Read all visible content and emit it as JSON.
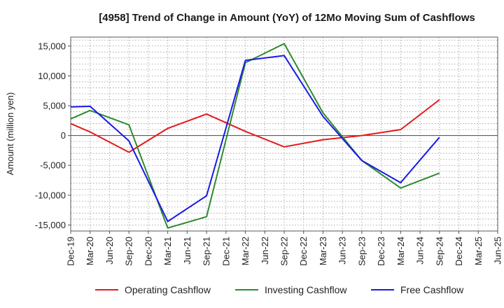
{
  "chart_data": {
    "type": "line",
    "title": "[4958]  Trend of Change in Amount (YoY) of 12Mo Moving Sum of Cashflows",
    "xlabel": "",
    "ylabel": "Amount (million yen)",
    "ylim": [
      -16000,
      16500
    ],
    "yticks": [
      -15000,
      -10000,
      -5000,
      0,
      5000,
      10000,
      15000
    ],
    "ytick_labels": [
      "-15,000",
      "-10,000",
      "-5,000",
      "0",
      "5,000",
      "10,000",
      "15,000"
    ],
    "categories": [
      "Dec-19",
      "Mar-20",
      "Jun-20",
      "Sep-20",
      "Dec-20",
      "Mar-21",
      "Jun-21",
      "Sep-21",
      "Dec-21",
      "Mar-22",
      "Jun-22",
      "Sep-22",
      "Dec-22",
      "Mar-23",
      "Jun-23",
      "Sep-23",
      "Dec-23",
      "Mar-24",
      "Jun-24",
      "Sep-24",
      "Dec-24",
      "Mar-25"
    ],
    "xtick_labels": [
      "Dec-19",
      "Mar-20",
      "Jun-20",
      "Sep-20",
      "Dec-20",
      "Mar-21",
      "Jun-21",
      "Sep-21",
      "Dec-21",
      "Mar-22",
      "Jun-22",
      "Sep-22",
      "Dec-22",
      "Mar-23",
      "Jun-23",
      "Sep-23",
      "Dec-23",
      "Mar-24",
      "Jun-24",
      "Sep-24",
      "Dec-24",
      "Mar-25",
      "Jun-25"
    ],
    "grid": true,
    "zero_line": true,
    "legend_position": "bottom",
    "series": [
      {
        "name": "Operating Cashflow",
        "color": "#e41a1a",
        "points": [
          [
            0,
            2000
          ],
          [
            1,
            600
          ],
          [
            3,
            -2800
          ],
          [
            5,
            1200
          ],
          [
            7,
            3600
          ],
          [
            9,
            700
          ],
          [
            11,
            -1900
          ],
          [
            13,
            -700
          ],
          [
            15,
            0
          ],
          [
            17,
            1000
          ],
          [
            19,
            6000
          ]
        ]
      },
      {
        "name": "Investing Cashflow",
        "color": "#2e8b2e",
        "points": [
          [
            0,
            2800
          ],
          [
            1,
            4200
          ],
          [
            3,
            1800
          ],
          [
            5,
            -15500
          ],
          [
            7,
            -13600
          ],
          [
            9,
            12200
          ],
          [
            11,
            15400
          ],
          [
            13,
            3800
          ],
          [
            15,
            -4200
          ],
          [
            17,
            -8800
          ],
          [
            19,
            -6300
          ]
        ]
      },
      {
        "name": "Free Cashflow",
        "color": "#1a1ae6",
        "points": [
          [
            0,
            4800
          ],
          [
            1,
            4900
          ],
          [
            3,
            -900
          ],
          [
            5,
            -14400
          ],
          [
            7,
            -10100
          ],
          [
            9,
            12600
          ],
          [
            11,
            13400
          ],
          [
            13,
            3200
          ],
          [
            15,
            -4200
          ],
          [
            17,
            -7900
          ],
          [
            19,
            -300
          ]
        ]
      }
    ]
  }
}
